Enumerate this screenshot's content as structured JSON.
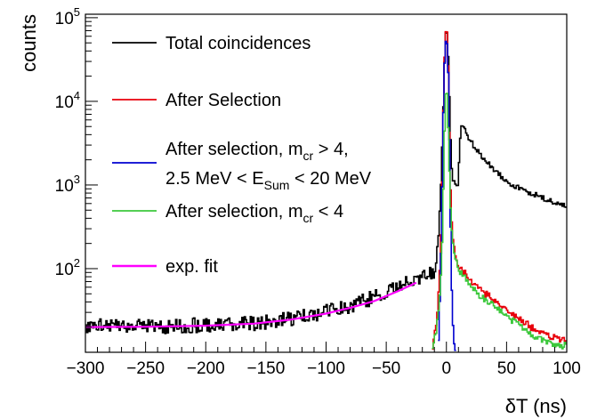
{
  "chart_data": {
    "type": "line",
    "xlabel": "δT (ns)",
    "ylabel": "counts",
    "xlim": [
      -300,
      100
    ],
    "ylim": [
      10,
      110000
    ],
    "y_scale": "log",
    "x_ticks": [
      -300,
      -250,
      -200,
      -150,
      -100,
      -50,
      0,
      50,
      100
    ],
    "x_tick_labels": [
      "−300",
      "−250",
      "−200",
      "−150",
      "−100",
      "−50",
      "0",
      "50",
      "100"
    ],
    "y_ticks": [
      100,
      1000,
      10000,
      100000
    ],
    "y_tick_labels": [
      {
        "base": "10",
        "exp": "2"
      },
      {
        "base": "10",
        "exp": "3"
      },
      {
        "base": "10",
        "exp": "4"
      },
      {
        "base": "10",
        "exp": "5"
      }
    ],
    "grid": false,
    "legend_position": "top-left",
    "legend": [
      {
        "series": "total",
        "lines": [
          [
            {
              "t": "Total coincidences"
            }
          ]
        ]
      },
      {
        "series": "selection",
        "lines": [
          [
            {
              "t": "After Selection"
            }
          ]
        ]
      },
      {
        "series": "mcr_gt4",
        "lines": [
          [
            {
              "t": "After selection, m"
            },
            {
              "t": "cr",
              "sub": true
            },
            {
              "t": " > 4,"
            }
          ],
          [
            {
              "t": "2.5 MeV < E"
            },
            {
              "t": "Sum",
              "sub": true
            },
            {
              "t": " < 20 MeV"
            }
          ]
        ]
      },
      {
        "series": "mcr_lt4",
        "lines": [
          [
            {
              "t": "After selection, m"
            },
            {
              "t": "cr",
              "sub": true
            },
            {
              "t": " < 4"
            }
          ]
        ]
      },
      {
        "series": "fit",
        "lines": [
          [
            {
              "t": "exp. fit"
            }
          ]
        ]
      }
    ],
    "series": [
      {
        "key": "total",
        "color": "#000000",
        "style": "histogram",
        "points": [
          [
            -300,
            21
          ],
          [
            -270,
            21
          ],
          [
            -240,
            20
          ],
          [
            -210,
            21
          ],
          [
            -180,
            21
          ],
          [
            -150,
            23
          ],
          [
            -130,
            25
          ],
          [
            -110,
            28
          ],
          [
            -90,
            33
          ],
          [
            -70,
            40
          ],
          [
            -50,
            52
          ],
          [
            -35,
            65
          ],
          [
            -25,
            75
          ],
          [
            -15,
            85
          ],
          [
            -10,
            95
          ],
          [
            -7,
            200
          ],
          [
            -5,
            600
          ],
          [
            -3,
            5000
          ],
          [
            -1,
            50000
          ],
          [
            0,
            82000
          ],
          [
            1,
            60000
          ],
          [
            2,
            20000
          ],
          [
            3,
            6000
          ],
          [
            4,
            2000
          ],
          [
            5,
            1200
          ],
          [
            7,
            1000
          ],
          [
            9,
            900
          ],
          [
            10,
            1200
          ],
          [
            11,
            3000
          ],
          [
            12,
            4500
          ],
          [
            13,
            5500
          ],
          [
            14,
            5000
          ],
          [
            18,
            3800
          ],
          [
            25,
            2600
          ],
          [
            35,
            1800
          ],
          [
            45,
            1300
          ],
          [
            55,
            1000
          ],
          [
            65,
            850
          ],
          [
            75,
            750
          ],
          [
            85,
            650
          ],
          [
            95,
            580
          ],
          [
            100,
            560
          ]
        ]
      },
      {
        "key": "selection",
        "color": "#e8000b",
        "style": "histogram",
        "points": [
          [
            -12,
            10
          ],
          [
            -10,
            15
          ],
          [
            -8,
            25
          ],
          [
            -6,
            60
          ],
          [
            -4,
            400
          ],
          [
            -3,
            3000
          ],
          [
            -2,
            20000
          ],
          [
            -1,
            60000
          ],
          [
            0,
            80000
          ],
          [
            1,
            60000
          ],
          [
            2,
            12000
          ],
          [
            3,
            1500
          ],
          [
            4,
            500
          ],
          [
            5,
            250
          ],
          [
            7,
            150
          ],
          [
            10,
            110
          ],
          [
            15,
            90
          ],
          [
            20,
            70
          ],
          [
            25,
            60
          ],
          [
            30,
            52
          ],
          [
            35,
            48
          ],
          [
            40,
            42
          ],
          [
            45,
            38
          ],
          [
            50,
            32
          ],
          [
            55,
            28
          ],
          [
            60,
            25
          ],
          [
            65,
            23
          ],
          [
            70,
            20
          ],
          [
            75,
            18
          ],
          [
            80,
            17
          ],
          [
            85,
            16
          ],
          [
            90,
            15
          ],
          [
            95,
            14
          ],
          [
            100,
            14
          ]
        ]
      },
      {
        "key": "mcr_gt4",
        "color": "#0000d0",
        "style": "histogram",
        "points": [
          [
            -7,
            10
          ],
          [
            -6,
            20
          ],
          [
            -5,
            80
          ],
          [
            -4,
            300
          ],
          [
            -3,
            3000
          ],
          [
            -2,
            18000
          ],
          [
            -1,
            45000
          ],
          [
            0,
            60000
          ],
          [
            1,
            40000
          ],
          [
            2,
            12000
          ],
          [
            3,
            1000
          ],
          [
            4,
            100
          ],
          [
            5,
            30
          ],
          [
            6,
            15
          ],
          [
            7,
            11
          ],
          [
            8,
            10
          ]
        ]
      },
      {
        "key": "mcr_lt4",
        "color": "#3cc83c",
        "style": "histogram",
        "points": [
          [
            -12,
            10
          ],
          [
            -10,
            14
          ],
          [
            -8,
            20
          ],
          [
            -6,
            35
          ],
          [
            -4,
            100
          ],
          [
            -3,
            400
          ],
          [
            -2,
            2000
          ],
          [
            -1,
            10000
          ],
          [
            0,
            16000
          ],
          [
            1,
            10000
          ],
          [
            2,
            2500
          ],
          [
            3,
            800
          ],
          [
            4,
            350
          ],
          [
            5,
            230
          ],
          [
            7,
            140
          ],
          [
            10,
            100
          ],
          [
            15,
            80
          ],
          [
            20,
            62
          ],
          [
            25,
            53
          ],
          [
            30,
            45
          ],
          [
            35,
            40
          ],
          [
            40,
            35
          ],
          [
            45,
            31
          ],
          [
            50,
            27
          ],
          [
            55,
            24
          ],
          [
            60,
            21
          ],
          [
            65,
            19
          ],
          [
            70,
            17
          ],
          [
            75,
            15
          ],
          [
            80,
            14
          ],
          [
            85,
            13
          ],
          [
            90,
            12
          ],
          [
            95,
            12
          ],
          [
            100,
            12
          ]
        ]
      },
      {
        "key": "fit",
        "color": "#ff00ff",
        "style": "line",
        "points": [
          [
            -300,
            20
          ],
          [
            -250,
            20.2
          ],
          [
            -200,
            20.8
          ],
          [
            -160,
            22
          ],
          [
            -130,
            24.5
          ],
          [
            -100,
            29
          ],
          [
            -80,
            34
          ],
          [
            -60,
            41
          ],
          [
            -40,
            54
          ],
          [
            -25,
            68
          ]
        ]
      }
    ]
  }
}
